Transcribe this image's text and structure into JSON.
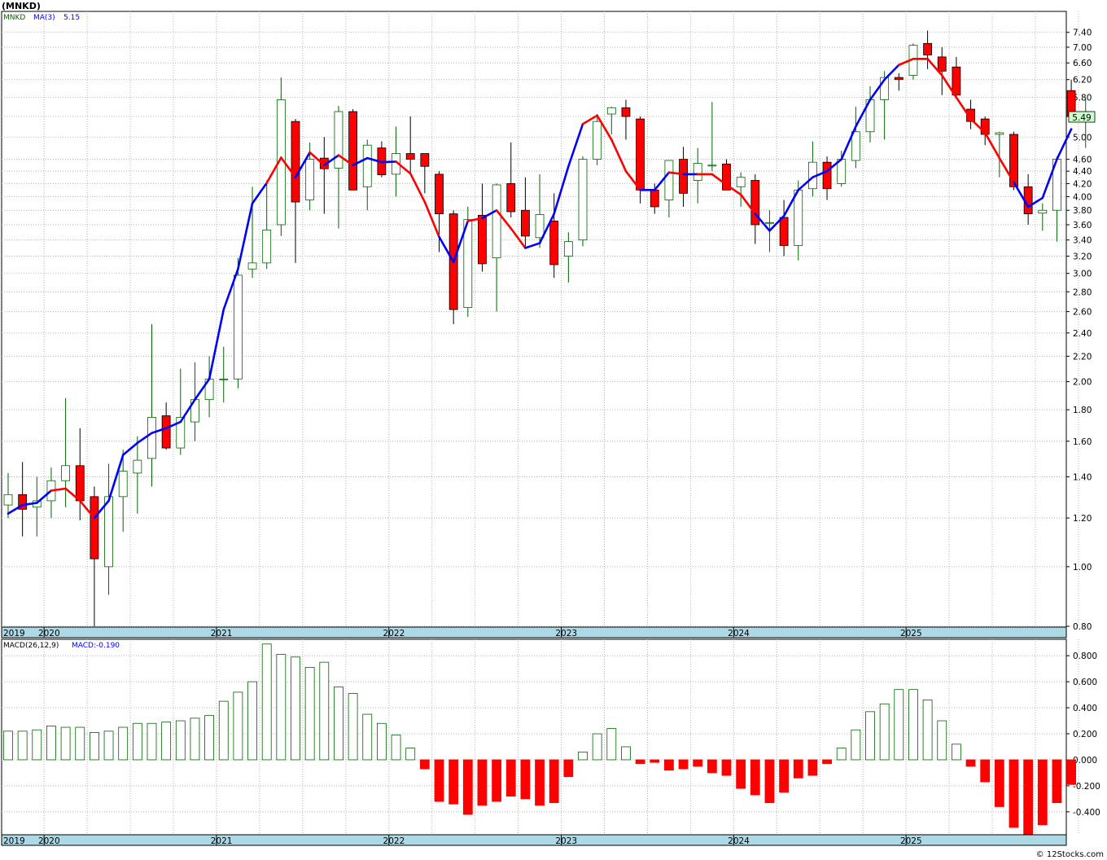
{
  "title": "(MNKD)",
  "upper_legend": {
    "symbol": "MNKD",
    "ma_label": "MA(3)",
    "ma_value": "5.15"
  },
  "lower_legend": {
    "macd_label": "MACD(26,12,9)",
    "macd_value": "MACD:-0.190"
  },
  "last_price_tag": "5.49",
  "footer": "© 12Stocks.com",
  "colors": {
    "up": "#006400",
    "down": "#ff0000",
    "ma_up": "#0000ff",
    "ma_down": "#ff0000",
    "axis_band": "#add8e6",
    "grid": "#b4b4b4",
    "price_tag_bg": "#ccffcc"
  },
  "chart_data": [
    {
      "type": "candlestick",
      "scale": "log",
      "period": "monthly",
      "ylim": [
        0.8,
        7.6
      ],
      "yticks": [
        "0.80",
        "1.00",
        "1.20",
        "1.40",
        "1.60",
        "1.80",
        "2.00",
        "2.20",
        "2.40",
        "2.60",
        "2.80",
        "3.00",
        "3.20",
        "3.40",
        "3.60",
        "3.80",
        "4.00",
        "4.20",
        "4.40",
        "4.60",
        "5.00",
        "5.40",
        "5.80",
        "6.20",
        "6.60",
        "7.00",
        "7.40"
      ],
      "year_labels": [
        "2019",
        "2020",
        "2021",
        "2022",
        "2023",
        "2024",
        "2025"
      ],
      "year_start_index": [
        0,
        3,
        15,
        27,
        39,
        51,
        63
      ],
      "grid": true,
      "candles": [
        [
          1.26,
          1.42,
          1.2,
          1.31
        ],
        [
          1.31,
          1.48,
          1.12,
          1.24
        ],
        [
          1.25,
          1.4,
          1.12,
          1.28
        ],
        [
          1.28,
          1.45,
          1.2,
          1.38
        ],
        [
          1.38,
          1.88,
          1.25,
          1.46
        ],
        [
          1.46,
          1.68,
          1.19,
          1.28
        ],
        [
          1.3,
          1.35,
          0.8,
          1.03
        ],
        [
          1.0,
          1.47,
          0.9,
          1.3
        ],
        [
          1.3,
          1.55,
          1.14,
          1.43
        ],
        [
          1.42,
          1.63,
          1.22,
          1.49
        ],
        [
          1.5,
          2.48,
          1.35,
          1.75
        ],
        [
          1.76,
          1.85,
          1.55,
          1.56
        ],
        [
          1.56,
          2.1,
          1.52,
          1.75
        ],
        [
          1.72,
          2.15,
          1.6,
          1.87
        ],
        [
          1.87,
          2.2,
          1.75,
          2.02
        ],
        [
          2.02,
          2.28,
          1.85,
          2.02
        ],
        [
          2.02,
          3.18,
          1.95,
          2.98
        ],
        [
          3.05,
          4.15,
          2.95,
          3.12
        ],
        [
          3.12,
          4.25,
          3.05,
          3.53
        ],
        [
          3.6,
          6.25,
          3.45,
          5.75
        ],
        [
          5.3,
          5.35,
          3.12,
          3.92
        ],
        [
          3.95,
          4.9,
          3.8,
          4.6
        ],
        [
          4.62,
          5.0,
          3.75,
          4.44
        ],
        [
          4.45,
          5.62,
          3.55,
          5.5
        ],
        [
          5.5,
          5.55,
          4.1,
          4.1
        ],
        [
          4.15,
          4.95,
          3.8,
          4.85
        ],
        [
          4.8,
          4.92,
          4.3,
          4.34
        ],
        [
          4.35,
          5.2,
          4.0,
          4.7
        ],
        [
          4.7,
          5.4,
          4.35,
          4.6
        ],
        [
          4.7,
          4.7,
          4.05,
          4.48
        ],
        [
          4.35,
          4.4,
          3.25,
          3.75
        ],
        [
          3.75,
          3.8,
          2.48,
          2.62
        ],
        [
          2.64,
          3.85,
          2.55,
          3.67
        ],
        [
          3.73,
          4.2,
          3.02,
          3.11
        ],
        [
          3.18,
          4.2,
          2.6,
          4.18
        ],
        [
          4.2,
          4.9,
          3.7,
          3.78
        ],
        [
          3.8,
          4.3,
          3.3,
          3.45
        ],
        [
          3.43,
          4.35,
          3.3,
          3.74
        ],
        [
          3.65,
          4.05,
          2.95,
          3.1
        ],
        [
          3.2,
          3.5,
          2.9,
          3.38
        ],
        [
          3.4,
          4.65,
          3.32,
          4.6
        ],
        [
          4.6,
          5.45,
          4.5,
          5.3
        ],
        [
          5.45,
          5.6,
          5.05,
          5.58
        ],
        [
          5.58,
          5.75,
          4.95,
          5.4
        ],
        [
          5.35,
          5.4,
          3.9,
          4.1
        ],
        [
          4.1,
          4.2,
          3.75,
          3.85
        ],
        [
          3.95,
          4.55,
          3.7,
          4.58
        ],
        [
          4.6,
          4.82,
          3.85,
          4.05
        ],
        [
          4.25,
          4.8,
          3.9,
          4.53
        ],
        [
          4.5,
          5.7,
          4.4,
          4.5
        ],
        [
          4.52,
          4.6,
          4.1,
          4.1
        ],
        [
          4.15,
          4.38,
          3.85,
          4.3
        ],
        [
          4.25,
          4.35,
          3.35,
          3.6
        ],
        [
          3.62,
          3.8,
          3.25,
          3.63
        ],
        [
          3.7,
          3.95,
          3.2,
          3.33
        ],
        [
          3.33,
          4.25,
          3.15,
          4.1
        ],
        [
          4.12,
          4.92,
          4.0,
          4.55
        ],
        [
          4.55,
          4.65,
          3.95,
          4.12
        ],
        [
          4.2,
          4.75,
          4.15,
          4.6
        ],
        [
          4.58,
          5.6,
          4.45,
          5.1
        ],
        [
          5.1,
          6.05,
          4.9,
          5.75
        ],
        [
          5.75,
          6.4,
          4.95,
          6.25
        ],
        [
          6.25,
          6.35,
          5.95,
          6.2
        ],
        [
          6.3,
          7.1,
          6.2,
          7.05
        ],
        [
          7.1,
          7.45,
          6.45,
          6.8
        ],
        [
          6.75,
          7.0,
          5.85,
          6.4
        ],
        [
          6.5,
          6.75,
          5.8,
          5.85
        ],
        [
          5.55,
          5.75,
          5.15,
          5.3
        ],
        [
          5.35,
          5.4,
          4.85,
          5.05
        ],
        [
          5.05,
          5.1,
          4.3,
          5.08
        ],
        [
          5.05,
          5.1,
          4.1,
          4.15
        ],
        [
          4.15,
          4.35,
          3.6,
          3.75
        ],
        [
          3.76,
          3.9,
          3.52,
          3.8
        ],
        [
          3.8,
          4.65,
          3.38,
          4.6
        ],
        [
          5.95,
          6.2,
          5.4,
          5.4
        ],
        [
          5.4,
          5.8,
          4.8,
          5.49
        ]
      ],
      "ma3": [
        1.22,
        1.26,
        1.27,
        1.33,
        1.34,
        1.28,
        1.2,
        1.28,
        1.52,
        1.59,
        1.65,
        1.68,
        1.72,
        1.87,
        2.02,
        2.62,
        3.05,
        3.9,
        4.21,
        4.63,
        4.3,
        4.72,
        4.5,
        4.67,
        4.5,
        4.62,
        4.55,
        4.56,
        4.36,
        3.92,
        3.44,
        3.13,
        3.65,
        3.69,
        3.8,
        3.55,
        3.3,
        3.36,
        3.75,
        4.48,
        5.25,
        5.42,
        4.95,
        4.4,
        4.1,
        4.1,
        4.38,
        4.35,
        4.35,
        4.35,
        4.18,
        4.03,
        3.75,
        3.52,
        3.72,
        4.1,
        4.3,
        4.4,
        4.6,
        5.2,
        5.75,
        6.2,
        6.55,
        6.7,
        6.7,
        6.3,
        5.8,
        5.35,
        5.08,
        4.62,
        4.22,
        3.85,
        3.98,
        4.6,
        5.15
      ],
      "ma3_color": [
        "blue",
        "blue",
        "blue",
        "blue",
        "red",
        "red",
        "red",
        "blue",
        "blue",
        "blue",
        "blue",
        "blue",
        "blue",
        "blue",
        "blue",
        "blue",
        "blue",
        "blue",
        "blue",
        "red",
        "red",
        "blue",
        "red",
        "blue",
        "red",
        "blue",
        "blue",
        "blue",
        "red",
        "red",
        "red",
        "blue",
        "blue",
        "red",
        "blue",
        "red",
        "red",
        "blue",
        "blue",
        "blue",
        "blue",
        "red",
        "red",
        "red",
        "red",
        "blue",
        "blue",
        "red",
        "blue",
        "red",
        "red",
        "red",
        "red",
        "blue",
        "blue",
        "blue",
        "blue",
        "blue",
        "blue",
        "blue",
        "blue",
        "blue",
        "blue",
        "red",
        "red",
        "red",
        "red",
        "red",
        "red",
        "red",
        "red",
        "blue",
        "blue",
        "blue",
        "blue"
      ]
    },
    {
      "type": "bar",
      "name": "MACD",
      "ylim": [
        -0.57,
        0.92
      ],
      "yticks": [
        "0.800",
        "0.600",
        "0.400",
        "0.200",
        "0.000",
        "-0.200",
        "-0.400"
      ],
      "year_labels": [
        "2019",
        "2020",
        "2021",
        "2022",
        "2023",
        "2024",
        "2025"
      ],
      "values": [
        0.22,
        0.22,
        0.23,
        0.26,
        0.25,
        0.25,
        0.21,
        0.22,
        0.25,
        0.28,
        0.28,
        0.29,
        0.3,
        0.32,
        0.34,
        0.45,
        0.52,
        0.6,
        0.89,
        0.81,
        0.79,
        0.71,
        0.75,
        0.56,
        0.51,
        0.35,
        0.28,
        0.19,
        0.09,
        -0.07,
        -0.32,
        -0.34,
        -0.42,
        -0.35,
        -0.32,
        -0.28,
        -0.3,
        -0.35,
        -0.33,
        -0.13,
        0.06,
        0.2,
        0.24,
        0.1,
        -0.03,
        -0.02,
        -0.08,
        -0.07,
        -0.05,
        -0.1,
        -0.12,
        -0.22,
        -0.27,
        -0.33,
        -0.25,
        -0.14,
        -0.12,
        -0.03,
        0.09,
        0.23,
        0.37,
        0.43,
        0.54,
        0.54,
        0.46,
        0.3,
        0.12,
        -0.05,
        -0.17,
        -0.36,
        -0.52,
        -0.58,
        -0.5,
        -0.33,
        -0.19
      ]
    }
  ]
}
